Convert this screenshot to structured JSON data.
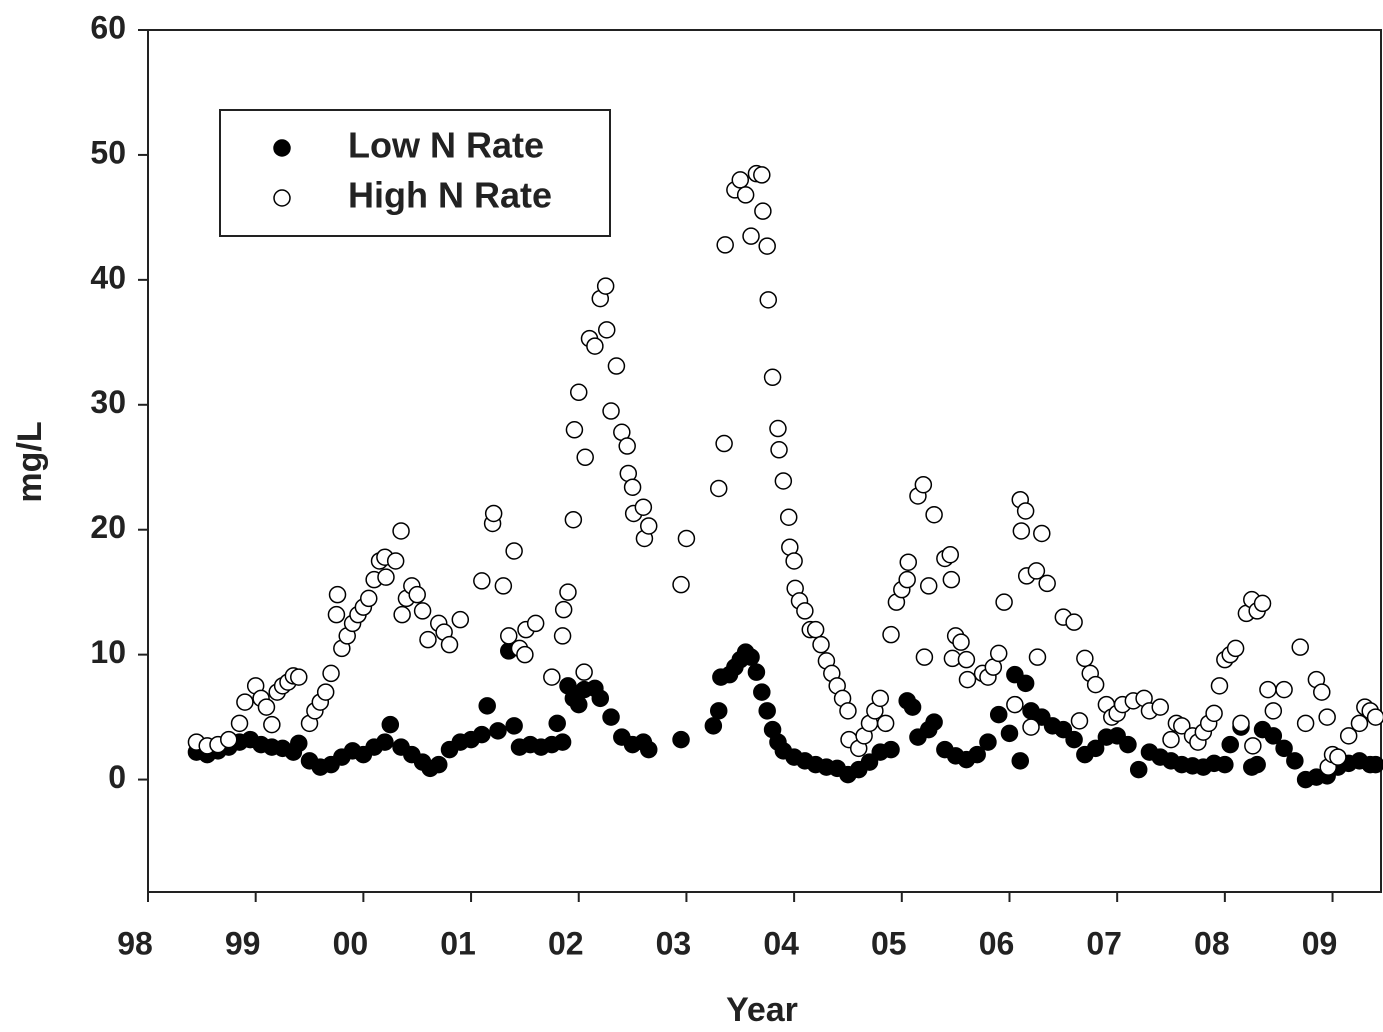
{
  "chart_data": {
    "type": "scatter",
    "x_label": "Year",
    "y_label": "mg/L",
    "xlim": [
      1998,
      2009.45
    ],
    "ylim": [
      -9,
      60
    ],
    "xticks": [
      {
        "value": 1998,
        "label": "98"
      },
      {
        "value": 1999,
        "label": "99"
      },
      {
        "value": 2000,
        "label": "00"
      },
      {
        "value": 2001,
        "label": "01"
      },
      {
        "value": 2002,
        "label": "02"
      },
      {
        "value": 2003,
        "label": "03"
      },
      {
        "value": 2004,
        "label": "04"
      },
      {
        "value": 2005,
        "label": "05"
      },
      {
        "value": 2006,
        "label": "06"
      },
      {
        "value": 2007,
        "label": "07"
      },
      {
        "value": 2008,
        "label": "08"
      },
      {
        "value": 2009,
        "label": "09"
      }
    ],
    "yticks": [
      0,
      10,
      20,
      30,
      40,
      50,
      60
    ],
    "legend": "upper left",
    "series": [
      {
        "name": "Low N Rate",
        "color": "#000000",
        "marker": "filled",
        "x": [
          1998.45,
          1998.55,
          1998.65,
          1998.75,
          1998.85,
          1998.95,
          1999.05,
          1999.15,
          1999.25,
          1999.35,
          1999.4,
          1999.5,
          1999.6,
          1999.7,
          1999.8,
          1999.9,
          2000.0,
          2000.1,
          2000.2,
          2000.25,
          2000.35,
          2000.45,
          2000.55,
          2000.62,
          2000.7,
          2000.8,
          2000.9,
          2001.0,
          2001.1,
          2001.15,
          2001.25,
          2001.35,
          2001.4,
          2001.45,
          2001.55,
          2001.65,
          2001.75,
          2001.8,
          2001.85,
          2001.9,
          2001.95,
          2002.0,
          2002.05,
          2002.15,
          2002.2,
          2002.3,
          2002.4,
          2002.5,
          2002.6,
          2002.65,
          2002.95,
          2003.25,
          2003.3,
          2003.32,
          2003.4,
          2003.45,
          2003.5,
          2003.55,
          2003.6,
          2003.65,
          2003.7,
          2003.75,
          2003.8,
          2003.85,
          2003.9,
          2004.0,
          2004.1,
          2004.2,
          2004.3,
          2004.4,
          2004.5,
          2004.6,
          2004.7,
          2004.8,
          2004.9,
          2005.05,
          2005.1,
          2005.15,
          2005.25,
          2005.3,
          2005.4,
          2005.5,
          2005.6,
          2005.7,
          2005.8,
          2005.9,
          2006.0,
          2006.05,
          2006.1,
          2006.15,
          2006.2,
          2006.3,
          2006.4,
          2006.5,
          2006.6,
          2006.7,
          2006.8,
          2006.9,
          2007.0,
          2007.1,
          2007.2,
          2007.3,
          2007.4,
          2007.5,
          2007.6,
          2007.7,
          2007.8,
          2007.9,
          2008.0,
          2008.05,
          2008.15,
          2008.25,
          2008.3,
          2008.35,
          2008.45,
          2008.55,
          2008.65,
          2008.75,
          2008.85,
          2008.95,
          2009.05,
          2009.15,
          2009.25,
          2009.35,
          2009.4
        ],
        "values": [
          2.2,
          2.0,
          2.3,
          2.6,
          3.0,
          3.2,
          2.8,
          2.6,
          2.5,
          2.2,
          2.9,
          1.5,
          1.0,
          1.2,
          1.8,
          2.3,
          2.0,
          2.6,
          3.0,
          4.4,
          2.6,
          2.0,
          1.4,
          0.9,
          1.2,
          2.4,
          3.0,
          3.2,
          3.6,
          5.9,
          3.9,
          10.3,
          4.3,
          2.6,
          2.8,
          2.6,
          2.8,
          4.5,
          3.0,
          7.5,
          6.5,
          6.0,
          7.2,
          7.3,
          6.5,
          5.0,
          3.4,
          2.8,
          3.0,
          2.4,
          3.2,
          4.3,
          5.5,
          8.2,
          8.4,
          9.0,
          9.6,
          10.2,
          9.8,
          8.6,
          7.0,
          5.5,
          4.0,
          3.0,
          2.3,
          1.8,
          1.5,
          1.2,
          1.0,
          0.9,
          0.4,
          0.8,
          1.4,
          2.2,
          2.4,
          6.3,
          5.8,
          3.4,
          4.0,
          4.6,
          2.4,
          1.9,
          1.6,
          2.0,
          3.0,
          5.2,
          3.7,
          8.4,
          1.5,
          7.7,
          5.5,
          5.0,
          4.3,
          4.0,
          3.2,
          2.0,
          2.5,
          3.4,
          3.5,
          2.8,
          0.8,
          2.2,
          1.8,
          1.5,
          1.2,
          1.1,
          1.0,
          1.3,
          1.2,
          2.8,
          4.2,
          1.0,
          1.2,
          4.0,
          3.5,
          2.5,
          1.5,
          0.0,
          0.2,
          0.3,
          1.0,
          1.3,
          1.5,
          1.2,
          1.2
        ]
      },
      {
        "name": "High N Rate",
        "color": "#000000",
        "marker": "open",
        "x": [
          1998.45,
          1998.55,
          1998.65,
          1998.75,
          1998.85,
          1998.9,
          1999.0,
          1999.05,
          1999.1,
          1999.15,
          1999.2,
          1999.25,
          1999.3,
          1999.35,
          1999.4,
          1999.5,
          1999.55,
          1999.6,
          1999.65,
          1999.7,
          1999.75,
          1999.76,
          1999.8,
          1999.85,
          1999.9,
          1999.95,
          2000.0,
          2000.05,
          2000.1,
          2000.15,
          2000.2,
          2000.21,
          2000.3,
          2000.35,
          2000.36,
          2000.4,
          2000.45,
          2000.5,
          2000.55,
          2000.6,
          2000.7,
          2000.75,
          2000.8,
          2000.9,
          2001.1,
          2001.2,
          2001.21,
          2001.3,
          2001.35,
          2001.4,
          2001.45,
          2001.5,
          2001.51,
          2001.6,
          2001.75,
          2001.85,
          2001.86,
          2001.9,
          2001.95,
          2001.96,
          2002.0,
          2002.05,
          2002.06,
          2002.1,
          2002.15,
          2002.2,
          2002.25,
          2002.26,
          2002.3,
          2002.35,
          2002.4,
          2002.45,
          2002.46,
          2002.5,
          2002.51,
          2002.6,
          2002.61,
          2002.65,
          2002.95,
          2003.0,
          2003.3,
          2003.35,
          2003.36,
          2003.45,
          2003.5,
          2003.55,
          2003.6,
          2003.65,
          2003.7,
          2003.71,
          2003.75,
          2003.76,
          2003.8,
          2003.85,
          2003.86,
          2003.9,
          2003.95,
          2003.96,
          2004.0,
          2004.01,
          2004.05,
          2004.1,
          2004.15,
          2004.2,
          2004.25,
          2004.3,
          2004.35,
          2004.4,
          2004.45,
          2004.5,
          2004.51,
          2004.6,
          2004.65,
          2004.7,
          2004.75,
          2004.8,
          2004.85,
          2004.9,
          2004.95,
          2005.0,
          2005.05,
          2005.06,
          2005.15,
          2005.2,
          2005.21,
          2005.25,
          2005.3,
          2005.4,
          2005.45,
          2005.46,
          2005.47,
          2005.5,
          2005.55,
          2005.6,
          2005.61,
          2005.75,
          2005.8,
          2005.85,
          2005.9,
          2005.95,
          2006.05,
          2006.1,
          2006.11,
          2006.15,
          2006.16,
          2006.2,
          2006.25,
          2006.26,
          2006.3,
          2006.35,
          2006.5,
          2006.6,
          2006.65,
          2006.7,
          2006.75,
          2006.8,
          2006.9,
          2006.95,
          2007.0,
          2007.05,
          2007.15,
          2007.25,
          2007.3,
          2007.4,
          2007.5,
          2007.55,
          2007.6,
          2007.7,
          2007.75,
          2007.8,
          2007.85,
          2007.9,
          2007.95,
          2008.0,
          2008.05,
          2008.1,
          2008.15,
          2008.2,
          2008.25,
          2008.26,
          2008.3,
          2008.35,
          2008.4,
          2008.45,
          2008.55,
          2008.7,
          2008.75,
          2008.85,
          2008.9,
          2008.95,
          2008.96,
          2009.0,
          2009.05,
          2009.15,
          2009.25,
          2009.3,
          2009.35,
          2009.4
        ],
        "values": [
          3.0,
          2.7,
          2.8,
          3.2,
          4.5,
          6.2,
          7.5,
          6.5,
          5.8,
          4.4,
          7.0,
          7.5,
          7.8,
          8.3,
          8.2,
          4.5,
          5.5,
          6.2,
          7.0,
          8.5,
          13.2,
          14.8,
          10.5,
          11.5,
          12.5,
          13.2,
          13.8,
          14.5,
          16.0,
          17.5,
          17.8,
          16.2,
          17.5,
          19.9,
          13.2,
          14.5,
          15.5,
          14.8,
          13.5,
          11.2,
          12.5,
          11.8,
          10.8,
          12.8,
          15.9,
          20.5,
          21.3,
          15.5,
          11.5,
          18.3,
          10.5,
          10.0,
          12.0,
          12.5,
          8.2,
          11.5,
          13.6,
          15.0,
          20.8,
          28.0,
          31.0,
          8.6,
          25.8,
          35.3,
          34.7,
          38.5,
          39.5,
          36.0,
          29.5,
          33.1,
          27.8,
          26.7,
          24.5,
          23.4,
          21.3,
          21.8,
          19.3,
          20.3,
          15.6,
          19.3,
          23.3,
          26.9,
          42.8,
          47.2,
          48.0,
          46.8,
          43.5,
          48.5,
          48.4,
          45.5,
          42.7,
          38.4,
          32.2,
          28.1,
          26.4,
          23.9,
          21.0,
          18.6,
          17.5,
          15.3,
          14.3,
          13.5,
          12.0,
          12.0,
          10.8,
          9.5,
          8.5,
          7.5,
          6.5,
          5.5,
          3.2,
          2.5,
          3.5,
          4.5,
          5.5,
          6.5,
          4.5,
          11.6,
          14.2,
          15.2,
          16.0,
          17.4,
          22.7,
          23.6,
          9.8,
          15.5,
          21.2,
          17.7,
          18.0,
          16.0,
          9.7,
          11.5,
          11.0,
          9.6,
          8.0,
          8.5,
          8.2,
          9.0,
          10.1,
          14.2,
          6.0,
          22.4,
          19.9,
          21.5,
          16.3,
          4.2,
          16.7,
          9.8,
          19.7,
          15.7,
          13.0,
          12.6,
          4.7,
          9.7,
          8.5,
          7.6,
          6.0,
          5.0,
          5.3,
          6.0,
          6.3,
          6.5,
          5.5,
          5.8,
          3.2,
          4.5,
          4.3,
          3.5,
          3.0,
          3.8,
          4.5,
          5.3,
          7.5,
          9.6,
          10.0,
          10.5,
          4.5,
          13.3,
          14.4,
          2.7,
          13.5,
          14.1,
          7.2,
          5.5,
          7.2,
          10.6,
          4.5,
          8.0,
          7.0,
          5.0,
          1.0,
          2.0,
          1.8,
          3.5,
          4.5,
          5.8,
          5.5,
          5.0
        ]
      }
    ]
  }
}
